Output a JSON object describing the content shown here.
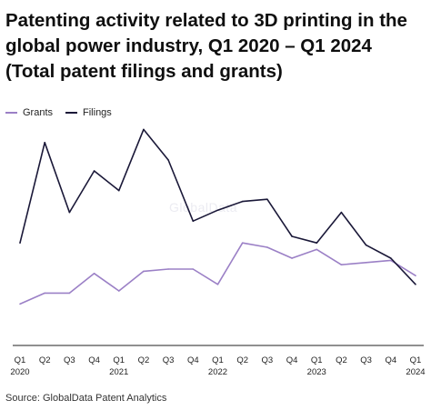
{
  "title": "Patenting activity related to 3D printing in the global power industry, Q1 2020 – Q1 2024 (Total patent filings and grants)",
  "source": "Source: GlobalData Patent Analytics",
  "watermark": "GlobalData",
  "colors": {
    "grants": "#9b80c6",
    "filings": "#1a1838",
    "axis": "#222222"
  },
  "chart_data": {
    "type": "line",
    "title": "Patenting activity related to 3D printing in the global power industry, Q1 2020 – Q1 2024 (Total patent filings and grants)",
    "xlabel": "",
    "ylabel": "",
    "grid": false,
    "legend": "top-left",
    "categories": [
      "Q1 2020",
      "Q2 2020",
      "Q3 2020",
      "Q4 2020",
      "Q1 2021",
      "Q2 2021",
      "Q3 2021",
      "Q4 2021",
      "Q1 2022",
      "Q2 2022",
      "Q3 2022",
      "Q4 2022",
      "Q1 2023",
      "Q2 2023",
      "Q3 2023",
      "Q4 2023",
      "Q1 2024"
    ],
    "tick_labels": [
      {
        "q": "Q1",
        "year": "2020"
      },
      {
        "q": "Q2",
        "year": ""
      },
      {
        "q": "Q3",
        "year": ""
      },
      {
        "q": "Q4",
        "year": ""
      },
      {
        "q": "Q1",
        "year": "2021"
      },
      {
        "q": "Q2",
        "year": ""
      },
      {
        "q": "Q3",
        "year": ""
      },
      {
        "q": "Q4",
        "year": ""
      },
      {
        "q": "Q1",
        "year": "2022"
      },
      {
        "q": "Q2",
        "year": ""
      },
      {
        "q": "Q3",
        "year": ""
      },
      {
        "q": "Q4",
        "year": ""
      },
      {
        "q": "Q1",
        "year": "2023"
      },
      {
        "q": "Q2",
        "year": ""
      },
      {
        "q": "Q3",
        "year": ""
      },
      {
        "q": "Q4",
        "year": ""
      },
      {
        "q": "Q1",
        "year": "2024"
      }
    ],
    "ylim": [
      0,
      100
    ],
    "series": [
      {
        "name": "Grants",
        "color": "#9b80c6",
        "values": [
          19,
          24,
          24,
          33,
          25,
          34,
          35,
          35,
          28,
          47,
          45,
          40,
          44,
          37,
          38,
          39,
          32
        ]
      },
      {
        "name": "Filings",
        "color": "#1a1838",
        "values": [
          47,
          93,
          61,
          80,
          71,
          99,
          85,
          57,
          62,
          66,
          67,
          50,
          47,
          61,
          46,
          40,
          28
        ]
      }
    ]
  }
}
